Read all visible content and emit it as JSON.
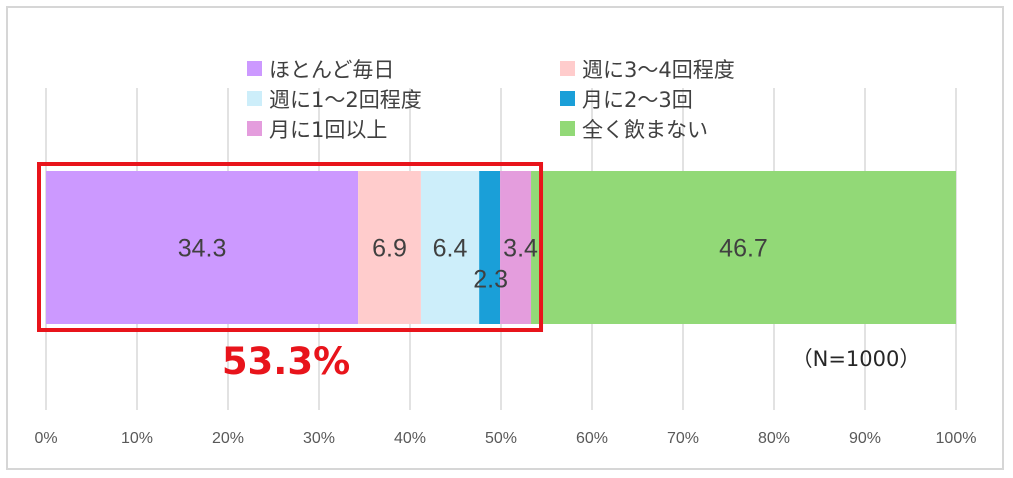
{
  "chart_data": {
    "type": "bar",
    "orientation": "horizontal",
    "stacked": true,
    "xlim": [
      0,
      100
    ],
    "x_tick_labels": [
      "0%",
      "10%",
      "20%",
      "30%",
      "40%",
      "50%",
      "60%",
      "70%",
      "80%",
      "90%",
      "100%"
    ],
    "grid": true,
    "legend_position": "top",
    "series": [
      {
        "name": "ほとんど毎日",
        "value": 34.3,
        "label": "34.3",
        "color": "#cc99ff"
      },
      {
        "name": "週に3〜4回程度",
        "value": 6.9,
        "label": "6.9",
        "color": "#ffcccc"
      },
      {
        "name": "週に1〜2回程度",
        "value": 6.4,
        "label": "6.4",
        "color": "#cdeefa"
      },
      {
        "name": "月に2〜3回",
        "value": 2.3,
        "label": "2.3",
        "color": "#1a9fd8"
      },
      {
        "name": "月に1回以上",
        "value": 3.4,
        "label": "3.4",
        "color": "#e49ddd"
      },
      {
        "name": "全く飲まない",
        "value": 46.7,
        "label": "46.7",
        "color": "#92d977"
      }
    ],
    "annotations": {
      "highlight_value": "53.3%",
      "highlight_color": "#e8141b",
      "sample_note": "（N=1000）"
    }
  }
}
